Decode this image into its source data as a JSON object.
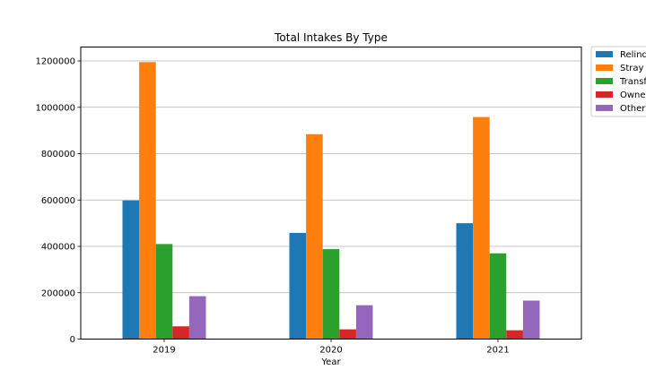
{
  "chart_data": {
    "type": "bar",
    "title": "Total Intakes By Type",
    "xlabel": "Year",
    "ylabel": "",
    "categories": [
      "2019",
      "2020",
      "2021"
    ],
    "ylim": [
      0,
      1260000
    ],
    "yticks": [
      0,
      200000,
      400000,
      600000,
      800000,
      1000000,
      1200000
    ],
    "ytick_labels": [
      "0",
      "200000",
      "400000",
      "600000",
      "800000",
      "1000000",
      "1200000"
    ],
    "grid": "y",
    "legend_placement": "top-right-outside",
    "series": [
      {
        "name": "Relinquished",
        "legend_label": "Relinq",
        "color": "#1f77b4",
        "values": [
          598000,
          458000,
          500000
        ]
      },
      {
        "name": "Stray",
        "legend_label": "Stray",
        "color": "#ff7f0e",
        "values": [
          1195000,
          884000,
          958000
        ]
      },
      {
        "name": "Transfer",
        "legend_label": "Transf",
        "color": "#2ca02c",
        "values": [
          410000,
          388000,
          370000
        ]
      },
      {
        "name": "Owner",
        "legend_label": "Owne",
        "color": "#d62728",
        "values": [
          55000,
          42000,
          38000
        ]
      },
      {
        "name": "Other",
        "legend_label": "Other",
        "color": "#9467bd",
        "values": [
          185000,
          146000,
          166000
        ]
      }
    ]
  }
}
